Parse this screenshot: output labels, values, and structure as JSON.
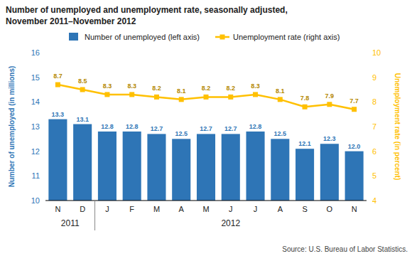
{
  "chart_data": {
    "type": "bar",
    "title": "Number of unemployed and unemployment rate, seasonally adjusted,",
    "subtitle": "November 2011–November 2012",
    "categories": [
      "N",
      "D",
      "J",
      "F",
      "M",
      "A",
      "M",
      "J",
      "J",
      "A",
      "S",
      "O",
      "N"
    ],
    "series": [
      {
        "name": "Number of unemployed (left axis)",
        "type": "bar",
        "color": "#2E75B6",
        "values": [
          13.3,
          13.1,
          12.8,
          12.8,
          12.7,
          12.5,
          12.7,
          12.7,
          12.8,
          12.5,
          12.1,
          12.3,
          12.0
        ],
        "value_labels": [
          "13.3",
          "13.1",
          "12.8",
          "12.8",
          "12.7",
          "12.5",
          "12.7",
          "12.7",
          "12.8",
          "12.5",
          "12.1",
          "12.3",
          "12.0"
        ]
      },
      {
        "name": "Unemployment rate (right axis)",
        "type": "line",
        "color": "#FFC000",
        "marker": "square",
        "axis": "y2",
        "values": [
          8.7,
          8.5,
          8.3,
          8.3,
          8.2,
          8.1,
          8.2,
          8.2,
          8.3,
          8.1,
          7.8,
          7.9,
          7.7
        ]
      }
    ],
    "ylabel": "Number of unemployed (in millions)",
    "y2label": "Unemployment rate (in percent)",
    "ylim": [
      10,
      16
    ],
    "yticks": [
      10,
      11,
      12,
      13,
      14,
      15,
      16
    ],
    "y2lim": [
      4,
      10
    ],
    "y2ticks": [
      4,
      5,
      6,
      7,
      8,
      9,
      10
    ],
    "grid": false,
    "legend": "top",
    "data_labels": true,
    "annotations": [
      {
        "text": "2011",
        "start": 0,
        "end": 1
      },
      {
        "text": "2012",
        "start": 2,
        "end": 12
      }
    ],
    "source": "Source: U.S. Bureau of Labor Statistics."
  }
}
